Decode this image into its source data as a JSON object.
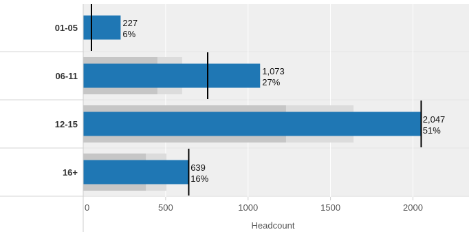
{
  "chart_data": {
    "type": "bar",
    "orientation": "horizontal",
    "style": "bullet",
    "xlabel": "Headcount",
    "xlim": [
      0,
      2340
    ],
    "ticks": [
      0,
      500,
      1000,
      1500,
      2000
    ],
    "tick_labels": [
      "0",
      "500",
      "1000",
      "1500",
      "2000"
    ],
    "categories": [
      "01-05",
      "06-11",
      "12-15",
      "16+"
    ],
    "values": [
      227,
      1073,
      2047,
      639
    ],
    "value_labels": [
      "227",
      "1,073",
      "2,047",
      "639"
    ],
    "percent_labels": [
      "6%",
      "27%",
      "51%",
      "16%"
    ],
    "reference_ranges": [
      {
        "inner": 0,
        "outer": 0
      },
      {
        "inner": 450,
        "outer": 600
      },
      {
        "inner": 1230,
        "outer": 1640
      },
      {
        "inner": 380,
        "outer": 505
      }
    ],
    "reference_lines": [
      50,
      755,
      2050,
      640
    ],
    "grid": true,
    "colors": {
      "bar": "#1f77b4",
      "row_background": "#efefef",
      "range_outer": "#dcdcdc",
      "range_inner": "#c6c6c6",
      "reference_line": "#000000",
      "separator": "#d6d6d6"
    }
  }
}
